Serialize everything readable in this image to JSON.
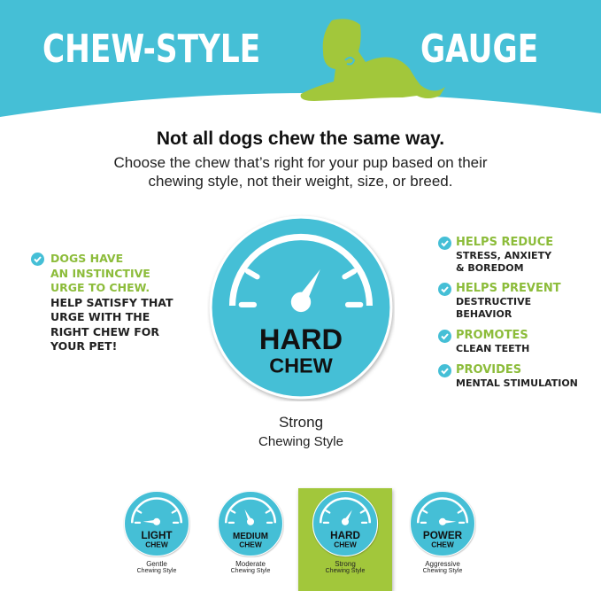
{
  "banner": {
    "title_left": "CHEW-STYLE",
    "title_right": "GAUGE",
    "mascot_icon": "dog-silhouette-icon"
  },
  "headline": "Not all dogs chew the same way.",
  "subheadline": [
    "Choose the chew that’s right for your pup based on their",
    "chewing style, not their weight, size, or breed."
  ],
  "left_callout": {
    "green_lines": [
      "DOGS HAVE",
      "AN INSTINCTIVE",
      "URGE TO CHEW."
    ],
    "dark_lines": [
      "HELP SATISFY THAT",
      "URGE WITH THE",
      "RIGHT CHEW FOR",
      "YOUR PET!"
    ]
  },
  "benefits": [
    {
      "title": "HELPS REDUCE",
      "lines": [
        "STRESS, ANXIETY",
        "& BOREDOM"
      ]
    },
    {
      "title": "HELPS PREVENT",
      "lines": [
        "DESTRUCTIVE",
        "BEHAVIOR"
      ]
    },
    {
      "title": "PROMOTES",
      "lines": [
        "CLEAN TEETH"
      ]
    },
    {
      "title": "PROVIDES",
      "lines": [
        "MENTAL STIMULATION"
      ]
    }
  ],
  "main_gauge": {
    "word1": "HARD",
    "word2": "CHEW",
    "level": 0.67,
    "strength": "Strong",
    "style": "Chewing Style"
  },
  "gauges": [
    {
      "word1": "LIGHT",
      "word2": "CHEW",
      "level": 0.0,
      "strength": "Gentle",
      "style": "Chewing Style",
      "selected": false
    },
    {
      "word1": "MEDIUM",
      "word2": "CHEW",
      "level": 0.36,
      "strength": "Moderate",
      "style": "Chewing Style",
      "selected": false
    },
    {
      "word1": "HARD",
      "word2": "CHEW",
      "level": 0.67,
      "strength": "Strong",
      "style": "Chewing Style",
      "selected": true
    },
    {
      "word1": "POWER",
      "word2": "CHEW",
      "level": 1.0,
      "strength": "Aggressive",
      "style": "Chewing Style",
      "selected": false
    }
  ],
  "colors": {
    "teal": "#45bfd6",
    "green": "#a2c73b",
    "text": "#111111"
  }
}
